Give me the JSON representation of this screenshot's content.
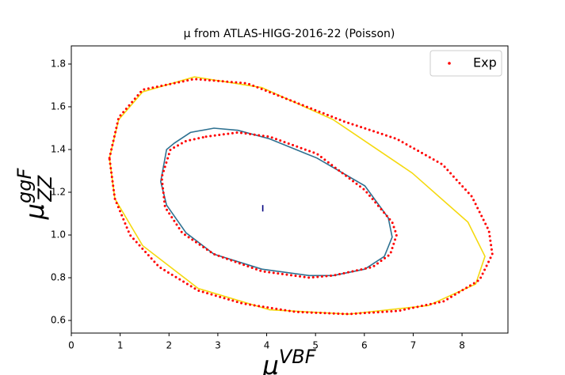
{
  "chart_data": {
    "type": "contour",
    "title": "μ from ATLAS-HIGG-2016-22 (Poisson)",
    "xlabel": {
      "base": "μ",
      "sup": "VBF"
    },
    "ylabel": {
      "base": "μ",
      "sup": "ggF",
      "sub": "ZZ"
    },
    "xlim": [
      0,
      8.94
    ],
    "ylim": [
      0.541,
      1.885
    ],
    "xticks": [
      0,
      1,
      2,
      3,
      4,
      5,
      6,
      7,
      8
    ],
    "yticks": [
      0.6,
      0.8,
      {
        "value": 1,
        "label": "1.0"
      },
      1.2,
      1.4,
      1.6,
      1.8
    ],
    "legend": "upper right",
    "series": [
      {
        "color": "#f5d90f",
        "style": "solid",
        "closed": true,
        "x": [
          0.78,
          0.97,
          1.46,
          2.52,
          3.9,
          5.36,
          6.98,
          8.12,
          8.47,
          8.28,
          7.31,
          5.68,
          4.06,
          2.6,
          1.46,
          0.89
        ],
        "y": [
          1.36,
          1.54,
          1.67,
          1.74,
          1.69,
          1.54,
          1.29,
          1.06,
          0.9,
          0.77,
          0.67,
          0.63,
          0.65,
          0.75,
          0.95,
          1.17
        ]
      },
      {
        "color": "#2e7191",
        "style": "solid",
        "closed": true,
        "x": [
          2.44,
          2.92,
          3.41,
          4.06,
          5.03,
          6.01,
          6.49,
          6.57,
          6.41,
          6.01,
          5.36,
          4.87,
          3.9,
          2.92,
          2.35,
          1.95,
          1.83,
          1.95,
          2.11
        ],
        "y": [
          1.48,
          1.5,
          1.49,
          1.45,
          1.36,
          1.23,
          1.08,
          0.99,
          0.9,
          0.84,
          0.81,
          0.81,
          0.84,
          0.91,
          1.01,
          1.14,
          1.25,
          1.4,
          1.43
        ]
      },
      {
        "name": "Exp",
        "color": "#ff0000",
        "style": "dotted",
        "closed": true,
        "x": [
          0.78,
          0.97,
          1.46,
          2.52,
          3.6,
          4.6,
          5.6,
          6.66,
          7.6,
          8.2,
          8.55,
          8.62,
          8.36,
          7.63,
          6.7,
          5.68,
          4.6,
          3.5,
          2.6,
          1.8,
          1.2,
          0.89
        ],
        "y": [
          1.36,
          1.55,
          1.68,
          1.73,
          1.71,
          1.62,
          1.53,
          1.45,
          1.33,
          1.18,
          1.02,
          0.91,
          0.79,
          0.69,
          0.645,
          0.63,
          0.64,
          0.68,
          0.74,
          0.85,
          1.0,
          1.17
        ]
      },
      {
        "color": "#ff0000",
        "style": "dotted",
        "closed": true,
        "x": [
          2.76,
          3.41,
          4.06,
          5.03,
          6.01,
          6.57,
          6.66,
          6.53,
          6.17,
          5.36,
          4.87,
          3.9,
          2.92,
          2.27,
          1.92,
          1.85,
          2.03,
          2.35
        ],
        "y": [
          1.46,
          1.48,
          1.46,
          1.38,
          1.21,
          1.06,
          1.0,
          0.91,
          0.85,
          0.81,
          0.8,
          0.83,
          0.91,
          1.01,
          1.13,
          1.27,
          1.4,
          1.44
        ]
      },
      {
        "color": "#000080",
        "style": "solid",
        "closed": false,
        "x": [
          3.92,
          3.92
        ],
        "y": [
          1.14,
          1.11
        ]
      }
    ]
  }
}
